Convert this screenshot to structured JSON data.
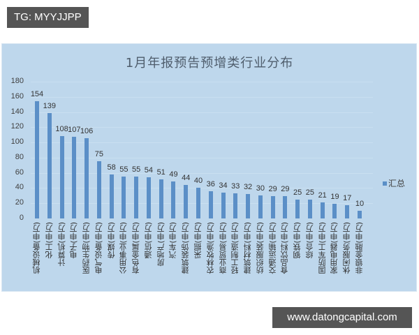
{
  "header": {
    "tag": "TG: MYYJJPP"
  },
  "footer": {
    "watermark": "www.datongcapital.com"
  },
  "colors": {
    "panel_bg": "#bed7ec",
    "bar": "#5b8fc7",
    "tag_bg": "#555555"
  },
  "chart_data": {
    "type": "bar",
    "title": "1月年报预告预增类行业分布",
    "xlabel": "",
    "ylabel": "",
    "ylim": [
      0,
      180
    ],
    "yticks": [
      0,
      20,
      40,
      60,
      80,
      100,
      120,
      140,
      160,
      180
    ],
    "grid": true,
    "legend_position": "right",
    "categories": [
      "机械设备(申万)",
      "化工(申万)",
      "计算机(申万)",
      "电子(申万)",
      "医药生物(申万)",
      "电气设备(申万)",
      "传媒(申万)",
      "公用事业(申万)",
      "有色金属(申万)",
      "通信(申万)",
      "房地产(申万)",
      "汽车(申万)",
      "建筑装饰(申万)",
      "采掘(申万)",
      "农林牧渔(申万)",
      "商业贸易(申万)",
      "轻工制造(申万)",
      "建筑材料(申万)",
      "纺织服装(申万)",
      "交通运输(申万)",
      "食品饮料(申万)",
      "钢铁(申万)",
      "综合(申万)",
      "国防军工(申万)",
      "家用电器(申万)",
      "休闲服务(申万)",
      "非银金融(申万)"
    ],
    "series": [
      {
        "name": "汇总",
        "values": [
          154,
          139,
          108,
          107,
          106,
          75,
          58,
          55,
          55,
          54,
          51,
          49,
          44,
          40,
          36,
          34,
          33,
          32,
          30,
          29,
          29,
          25,
          25,
          21,
          19,
          17,
          10
        ]
      }
    ]
  }
}
